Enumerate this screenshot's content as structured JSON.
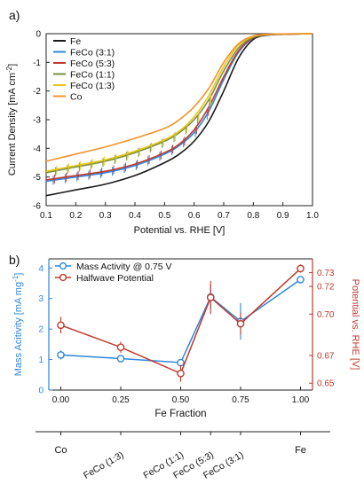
{
  "figure": {
    "panel_a_label": "a)",
    "panel_b_label": "b)"
  },
  "chart_data": [
    {
      "panel": "a)",
      "type": "line",
      "xlabel": "Potential vs. RHE [V]",
      "ylabel": "Current Density [mA cm",
      "ylabel_sup": "-2",
      "ylabel_end": "]",
      "xlim": [
        0.1,
        1.0
      ],
      "ylim": [
        -6,
        0
      ],
      "xticks": [
        "0.1",
        "0.2",
        "0.3",
        "0.4",
        "0.5",
        "0.6",
        "0.7",
        "0.8",
        "0.9",
        "1.0"
      ],
      "yticks": [
        "0",
        "-1",
        "-2",
        "-3",
        "-4",
        "-5",
        "-6"
      ],
      "legend_position": "top-left",
      "x": [
        0.1,
        0.2,
        0.3,
        0.4,
        0.5,
        0.55,
        0.6,
        0.65,
        0.7,
        0.75,
        0.8,
        0.85,
        0.9,
        1.0
      ],
      "series": [
        {
          "name": "Fe",
          "color": "#1a1a1a",
          "values": [
            -5.65,
            -5.45,
            -5.25,
            -4.95,
            -4.5,
            -4.2,
            -3.75,
            -3.05,
            -2.0,
            -0.85,
            -0.2,
            -0.05,
            -0.02,
            0.0
          ],
          "errorbars": false
        },
        {
          "name": "FeCo (3:1)",
          "color": "#2e86de",
          "values": [
            -5.15,
            -5.0,
            -4.85,
            -4.6,
            -4.2,
            -3.9,
            -3.45,
            -2.7,
            -1.6,
            -0.65,
            -0.15,
            -0.04,
            -0.02,
            0.0
          ],
          "errorbars": true
        },
        {
          "name": "FeCo (5:3)",
          "color": "#c0392b",
          "values": [
            -5.1,
            -4.95,
            -4.8,
            -4.55,
            -4.15,
            -3.85,
            -3.35,
            -2.55,
            -1.5,
            -0.6,
            -0.14,
            -0.04,
            -0.02,
            0.0
          ],
          "errorbars": true
        },
        {
          "name": "FeCo (1:1)",
          "color": "#7a8f3c",
          "values": [
            -4.85,
            -4.65,
            -4.45,
            -4.15,
            -3.75,
            -3.45,
            -3.0,
            -2.3,
            -1.3,
            -0.5,
            -0.12,
            -0.03,
            -0.01,
            0.0
          ],
          "errorbars": true
        },
        {
          "name": "FeCo (1:3)",
          "color": "#e6c619",
          "values": [
            -4.8,
            -4.6,
            -4.4,
            -4.1,
            -3.7,
            -3.4,
            -2.9,
            -2.15,
            -1.15,
            -0.4,
            -0.1,
            -0.03,
            -0.01,
            0.0
          ],
          "errorbars": true
        },
        {
          "name": "Co",
          "color": "#f0932b",
          "values": [
            -4.45,
            -4.2,
            -3.95,
            -3.65,
            -3.3,
            -3.0,
            -2.55,
            -1.9,
            -1.0,
            -0.35,
            -0.08,
            -0.02,
            -0.01,
            0.0
          ],
          "errorbars": false
        }
      ]
    },
    {
      "panel": "b)",
      "type": "line",
      "xlabel": "Fe Fraction",
      "ylabel_left": "Mass Acitivity [mA mg",
      "ylabel_left_sup": "-1",
      "ylabel_left_end": "]",
      "ylabel_right": "Potential vs. RHE [V]",
      "xlim": [
        -0.05,
        1.05
      ],
      "ylim_left": [
        0,
        4.3
      ],
      "ylim_right": [
        0.645,
        0.74
      ],
      "xticks": [
        "0.00",
        "0.25",
        "0.50",
        "0.75",
        "1.00"
      ],
      "yticks_left": [
        "0",
        "1",
        "2",
        "3",
        "4"
      ],
      "yticks_right": [
        "0.65",
        "0.67",
        "0.70",
        "0.72",
        "0.73"
      ],
      "category_axis": [
        {
          "label": "Co",
          "x": 0.0
        },
        {
          "label": "FeCo (1:3)",
          "x": 0.25
        },
        {
          "label": "FeCo (1:1)",
          "x": 0.5
        },
        {
          "label": "FeCo (5:3)",
          "x": 0.625
        },
        {
          "label": "FeCo (3:1)",
          "x": 0.75
        },
        {
          "label": "Fe",
          "x": 1.0
        }
      ],
      "legend_position": "top-left",
      "x": [
        0.0,
        0.25,
        0.5,
        0.625,
        0.75,
        1.0
      ],
      "series": [
        {
          "name": "Mass Activity @ 0.75 V",
          "axis": "left",
          "color": "#2e86de",
          "values": [
            1.15,
            1.03,
            0.9,
            3.05,
            2.25,
            3.62
          ],
          "errors": [
            0.15,
            0.08,
            0.12,
            0.4,
            0.6,
            0.08
          ]
        },
        {
          "name": "Halfwave Potential",
          "axis": "right",
          "color": "#c0392b",
          "values": [
            0.692,
            0.676,
            0.657,
            0.712,
            0.693,
            0.733
          ],
          "errors": [
            0.006,
            0.004,
            0.006,
            0.012,
            0.008,
            0.003
          ]
        }
      ]
    }
  ]
}
